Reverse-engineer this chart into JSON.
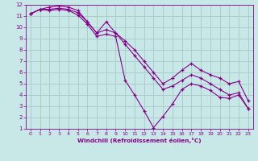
{
  "xlabel": "Windchill (Refroidissement éolien,°C)",
  "ylabel": "",
  "xlim": [
    -0.5,
    23.5
  ],
  "ylim": [
    1,
    12
  ],
  "xticks": [
    0,
    1,
    2,
    3,
    4,
    5,
    6,
    7,
    8,
    9,
    10,
    11,
    12,
    13,
    14,
    15,
    16,
    17,
    18,
    19,
    20,
    21,
    22,
    23
  ],
  "yticks": [
    1,
    2,
    3,
    4,
    5,
    6,
    7,
    8,
    9,
    10,
    11,
    12
  ],
  "background_color": "#c8e8e8",
  "grid_color": "#aacece",
  "line_color": "#880088",
  "line1_x": [
    0,
    1,
    2,
    3,
    4,
    5,
    6,
    7,
    8,
    9,
    10,
    11,
    12,
    13,
    14,
    15,
    16,
    17,
    18,
    19,
    20,
    21,
    22,
    23
  ],
  "line1_y": [
    11.2,
    11.6,
    11.5,
    11.6,
    11.5,
    11.1,
    10.3,
    9.2,
    9.4,
    9.2,
    5.3,
    4.0,
    2.6,
    1.1,
    2.1,
    3.2,
    4.5,
    5.0,
    4.8,
    4.4,
    3.8,
    3.7,
    4.0,
    2.8
  ],
  "line2_x": [
    0,
    1,
    2,
    3,
    4,
    5,
    6,
    7,
    8,
    9,
    10,
    11,
    12,
    13,
    14,
    15,
    16,
    17,
    18,
    19,
    20,
    21,
    22,
    23
  ],
  "line2_y": [
    11.2,
    11.6,
    11.6,
    11.7,
    11.6,
    11.3,
    10.5,
    9.5,
    9.8,
    9.5,
    8.5,
    7.5,
    6.5,
    5.5,
    4.5,
    4.8,
    5.3,
    5.8,
    5.5,
    5.0,
    4.5,
    4.0,
    4.2,
    2.8
  ],
  "line3_x": [
    0,
    1,
    2,
    3,
    4,
    5,
    6,
    7,
    8,
    9,
    10,
    11,
    12,
    13,
    14,
    15,
    16,
    17,
    18,
    19,
    20,
    21,
    22,
    23
  ],
  "line3_y": [
    11.2,
    11.6,
    11.8,
    11.9,
    11.8,
    11.5,
    10.5,
    9.5,
    10.5,
    9.5,
    8.8,
    8.0,
    7.0,
    6.0,
    5.0,
    5.5,
    6.2,
    6.8,
    6.2,
    5.8,
    5.5,
    5.0,
    5.2,
    3.5
  ]
}
